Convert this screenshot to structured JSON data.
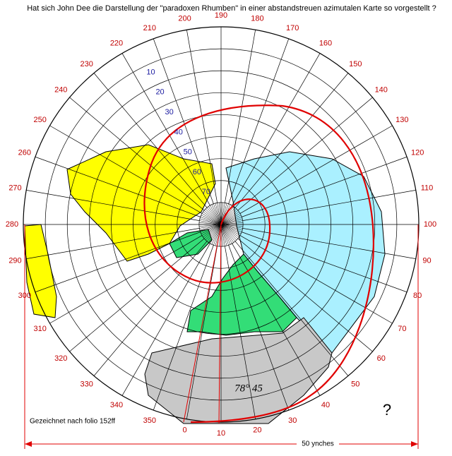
{
  "title": "Hat sich John Dee die Darstellung der \"paradoxen Rhumben\" in einer abstandstreuen azimutalen Karte so vorgestellt ?",
  "longitude_labels": [
    0,
    10,
    20,
    30,
    40,
    50,
    60,
    70,
    80,
    90,
    100,
    110,
    120,
    130,
    140,
    150,
    160,
    170,
    180,
    190,
    200,
    210,
    220,
    230,
    240,
    250,
    260,
    270,
    280,
    290,
    300,
    310,
    320,
    330,
    340,
    350
  ],
  "latitude_labels": [
    10,
    20,
    30,
    40,
    50,
    60,
    70
  ],
  "credit": "Gezeichnet nach folio 152ff",
  "scale_label": "50 ynches",
  "question_mark": "?",
  "annotation": "78° 45"
}
